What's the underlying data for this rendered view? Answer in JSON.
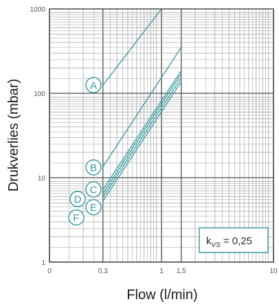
{
  "chart_data": {
    "type": "line",
    "xscale": "log",
    "yscale": "log",
    "xlim": [
      0.1,
      10
    ],
    "ylim": [
      1,
      1000
    ],
    "xlabel": "Flow (l/min)",
    "ylabel": "Drukverlies (mbar)",
    "x_ticks": [
      {
        "value": 0.1,
        "label": "0"
      },
      {
        "value": 0.3,
        "label": "0,3"
      },
      {
        "value": 1,
        "label": "1"
      },
      {
        "value": 1.5,
        "label": "1,5"
      },
      {
        "value": 10,
        "label": "10"
      }
    ],
    "y_ticks": [
      {
        "value": 1,
        "label": "1"
      },
      {
        "value": 10,
        "label": "10"
      },
      {
        "value": 100,
        "label": "100"
      },
      {
        "value": 1000,
        "label": "1000"
      }
    ],
    "series": [
      {
        "name": "A",
        "x": [
          0.3,
          1.0
        ],
        "y": [
          125,
          1000
        ]
      },
      {
        "name": "B",
        "x": [
          0.3,
          1.5
        ],
        "y": [
          13.5,
          350
        ]
      },
      {
        "name": "C",
        "x": [
          0.3,
          1.5
        ],
        "y": [
          7.2,
          185
        ]
      },
      {
        "name": "D",
        "x": [
          0.3,
          1.5
        ],
        "y": [
          6.5,
          170
        ]
      },
      {
        "name": "E",
        "x": [
          0.3,
          1.5
        ],
        "y": [
          5.9,
          152
        ]
      },
      {
        "name": "F",
        "x": [
          0.3,
          1.5
        ],
        "y": [
          5.3,
          137
        ]
      }
    ],
    "annotation": {
      "prefix": "k",
      "subscript": "VS",
      "value": "= 0,25"
    },
    "grid": true,
    "legend": "none"
  },
  "colors": {
    "series": "#3b9aa3",
    "grid_major": "#4a4a4a",
    "grid_minor": "#9a9a9a",
    "text": "#1a1a1a"
  }
}
